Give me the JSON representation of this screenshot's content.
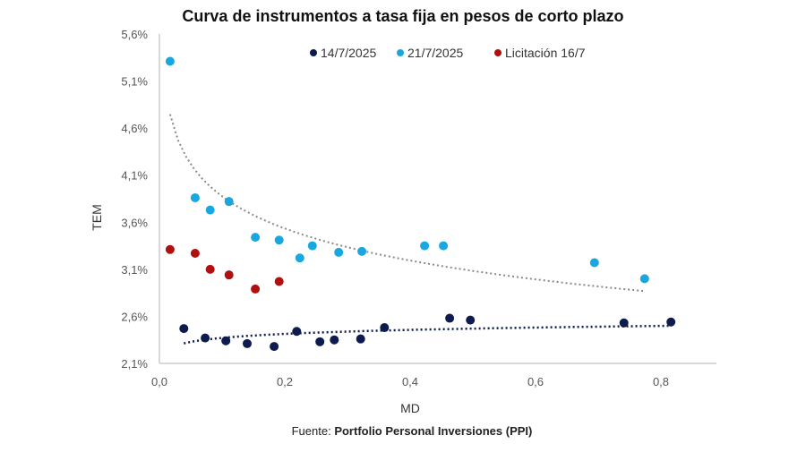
{
  "chart_data": {
    "type": "scatter",
    "title": "Curva de instrumentos a tasa fija en pesos de corto plazo",
    "xlabel": "MD",
    "ylabel": "TEM",
    "xlim": [
      0,
      0.9
    ],
    "ylim": [
      2.1,
      5.6
    ],
    "xticks": [
      "0,0",
      "0,2",
      "0,4",
      "0,6",
      "0,8"
    ],
    "xtick_values": [
      0,
      0.2,
      0.4,
      0.6,
      0.8
    ],
    "yticks": [
      "2,1%",
      "2,6%",
      "3,1%",
      "3,6%",
      "4,1%",
      "4,6%",
      "5,1%",
      "5,6%"
    ],
    "ytick_values": [
      2.1,
      2.6,
      3.1,
      3.6,
      4.1,
      4.6,
      5.1,
      5.6
    ],
    "grid": false,
    "legend_position": "top",
    "source_prefix": "Fuente: ",
    "source": "Portfolio Personal Inversiones (PPI)",
    "series": [
      {
        "name": "14/7/2025",
        "color": "#0d1b4f",
        "x": [
          0.039,
          0.073,
          0.106,
          0.14,
          0.183,
          0.219,
          0.256,
          0.279,
          0.321,
          0.359,
          0.463,
          0.496,
          0.741,
          0.816
        ],
        "y": [
          2.47,
          2.37,
          2.34,
          2.31,
          2.28,
          2.44,
          2.33,
          2.35,
          2.36,
          2.48,
          2.58,
          2.56,
          2.53,
          2.54
        ],
        "trendline": {
          "type": "logarithmic",
          "color": "#0d1b4f",
          "x_range": [
            0.039,
            0.816
          ]
        }
      },
      {
        "name": "21/7/2025",
        "color": "#1aa7e0",
        "x": [
          0.017,
          0.057,
          0.081,
          0.111,
          0.153,
          0.191,
          0.224,
          0.244,
          0.286,
          0.323,
          0.423,
          0.453,
          0.694,
          0.774
        ],
        "y": [
          5.31,
          3.86,
          3.73,
          3.82,
          3.44,
          3.41,
          3.22,
          3.35,
          3.28,
          3.29,
          3.35,
          3.35,
          3.17,
          3.0
        ],
        "trendline": {
          "type": "logarithmic",
          "color": "#8a8a8a",
          "x_range": [
            0.017,
            0.774
          ]
        }
      },
      {
        "name": "Licitación 16/7",
        "color": "#b01010",
        "x": [
          0.017,
          0.057,
          0.081,
          0.111,
          0.153,
          0.191
        ],
        "y": [
          3.31,
          3.27,
          3.1,
          3.04,
          2.89,
          2.97
        ]
      }
    ]
  }
}
